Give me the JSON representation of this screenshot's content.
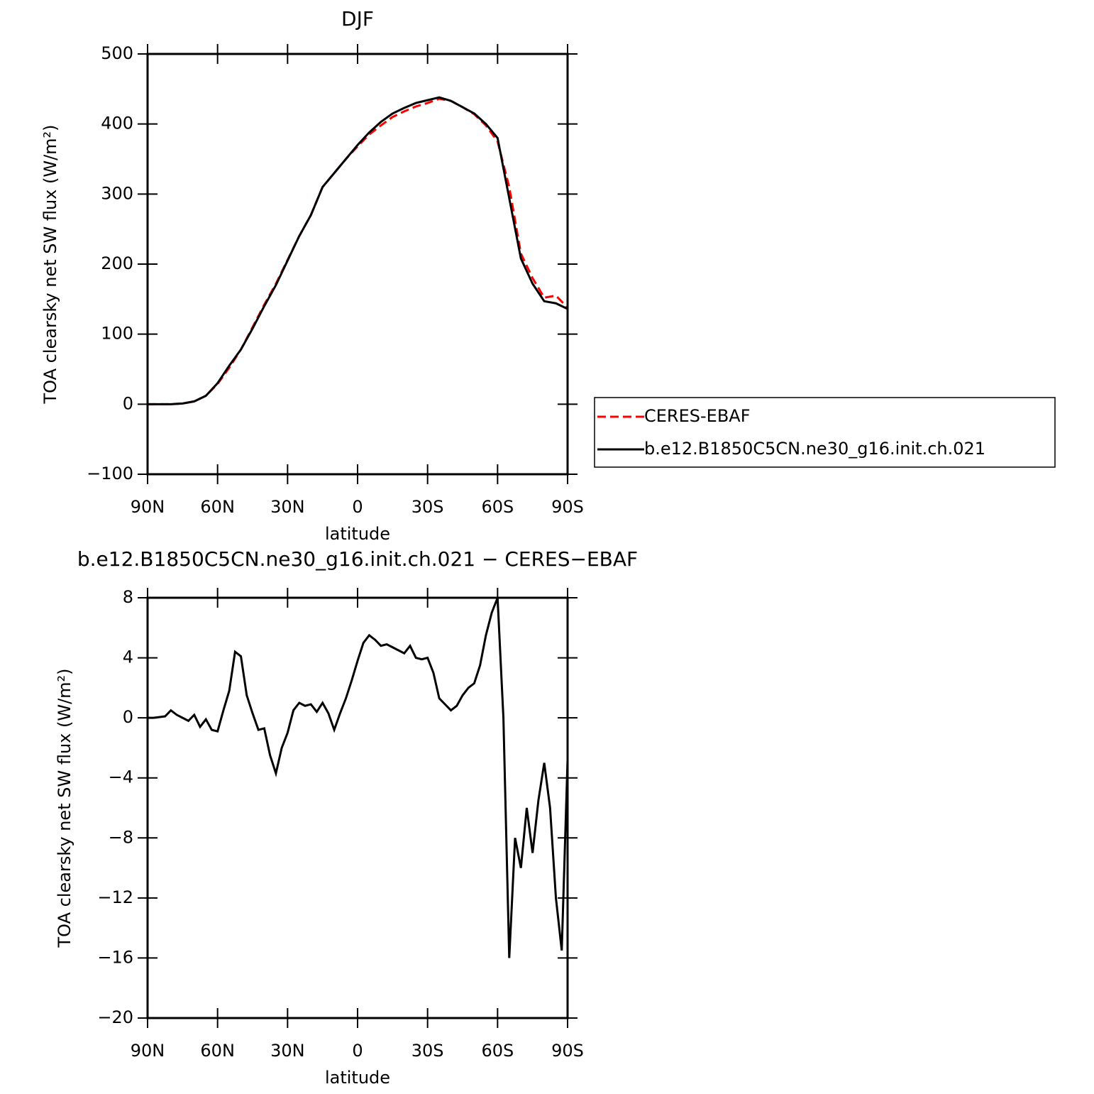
{
  "chart_data": [
    {
      "type": "line",
      "title": "DJF",
      "ylabel": "TOA clearsky net SW flux (W/m²)",
      "xlabel": "latitude",
      "x": [
        90,
        85,
        80,
        75,
        70,
        65,
        60,
        55,
        50,
        45,
        40,
        35,
        30,
        25,
        20,
        15,
        10,
        5,
        0,
        -5,
        -10,
        -15,
        -20,
        -25,
        -30,
        -35,
        -40,
        -45,
        -50,
        -55,
        -60,
        -65,
        -70,
        -75,
        -80,
        -85,
        -90
      ],
      "series": [
        {
          "name": "CERES-EBAF",
          "color": "#ff0000",
          "dashed": true,
          "values": [
            0,
            0,
            0,
            1,
            4,
            12,
            29,
            52,
            78,
            110,
            142,
            172,
            206,
            240,
            270,
            310,
            330,
            350,
            368,
            385,
            398,
            410,
            418,
            425,
            430,
            436,
            433,
            424,
            414,
            398,
            375,
            310,
            215,
            180,
            152,
            155,
            138
          ]
        },
        {
          "name": "b.e12.B1850C5CN.ne30_g16.init.ch.021",
          "color": "#000000",
          "dashed": false,
          "values": [
            0,
            0,
            0,
            1,
            4,
            12,
            30,
            55,
            78,
            108,
            140,
            170,
            205,
            240,
            270,
            310,
            330,
            350,
            370,
            388,
            403,
            415,
            423,
            430,
            434,
            438,
            433,
            424,
            415,
            400,
            380,
            294,
            208,
            172,
            147,
            144,
            136
          ]
        }
      ],
      "xlim": [
        90,
        -90
      ],
      "xticks": [
        {
          "value": 90,
          "label": "90N"
        },
        {
          "value": 60,
          "label": "60N"
        },
        {
          "value": 30,
          "label": "30N"
        },
        0,
        {
          "value": -30,
          "label": "30S"
        },
        {
          "value": -60,
          "label": "60S"
        },
        {
          "value": -90,
          "label": "90S"
        }
      ],
      "ylim": [
        -100,
        500
      ],
      "yticks": [
        {
          "value": -100,
          "label": "−100"
        },
        0,
        100,
        200,
        300,
        400,
        500
      ],
      "legend": "outside-right"
    },
    {
      "type": "line",
      "title": "b.e12.B1850C5CN.ne30_g16.init.ch.021 − CERES−EBAF",
      "ylabel": "TOA clearsky net SW flux (W/m²)",
      "xlabel": "latitude",
      "x": [
        90,
        87.5,
        85,
        82.5,
        80,
        77.5,
        75,
        72.5,
        70,
        67.5,
        65,
        62.5,
        60,
        57.5,
        55,
        52.5,
        50,
        47.5,
        45,
        42.5,
        40,
        37.5,
        35,
        32.5,
        30,
        27.5,
        25,
        22.5,
        20,
        17.5,
        15,
        12.5,
        10,
        7.5,
        5,
        2.5,
        0,
        -2.5,
        -5,
        -7.5,
        -10,
        -12.5,
        -15,
        -17.5,
        -20,
        -22.5,
        -25,
        -27.5,
        -30,
        -32.5,
        -35,
        -37.5,
        -40,
        -42.5,
        -45,
        -47.5,
        -50,
        -52.5,
        -55,
        -57.5,
        -60,
        -62.5,
        -65,
        -67.5,
        -70,
        -72.5,
        -75,
        -77.5,
        -80,
        -82.5,
        -85,
        -87.5,
        -90
      ],
      "values": [
        0,
        0,
        0.05,
        0.1,
        0.5,
        0.2,
        0,
        -0.2,
        0.2,
        -0.6,
        -0.1,
        -0.8,
        -0.9,
        0.5,
        1.8,
        4.4,
        4.1,
        1.5,
        0.3,
        -0.8,
        -0.7,
        -2.5,
        -3.7,
        -2,
        -1,
        0.5,
        1,
        0.8,
        0.9,
        0.4,
        1,
        0.3,
        -0.8,
        0.3,
        1.3,
        2.5,
        3.8,
        5,
        5.5,
        5.2,
        4.8,
        4.9,
        4.7,
        4.5,
        4.3,
        4.8,
        4,
        3.9,
        4,
        3,
        1.3,
        0.9,
        0.5,
        0.8,
        1.5,
        2,
        2.3,
        3.5,
        5.5,
        7,
        8,
        0,
        -16,
        -8,
        -10,
        -6,
        -9,
        -5.5,
        -3,
        -6,
        -12,
        -15.5,
        -2.8
      ],
      "color": "#000000",
      "xlim": [
        90,
        -90
      ],
      "xticks": [
        {
          "value": 90,
          "label": "90N"
        },
        {
          "value": 60,
          "label": "60N"
        },
        {
          "value": 30,
          "label": "30N"
        },
        0,
        {
          "value": -30,
          "label": "30S"
        },
        {
          "value": -60,
          "label": "60S"
        },
        {
          "value": -90,
          "label": "90S"
        }
      ],
      "ylim": [
        -20,
        8
      ],
      "yticks": [
        {
          "value": -20,
          "label": "−20"
        },
        {
          "value": -16,
          "label": "−16"
        },
        {
          "value": -12,
          "label": "−12"
        },
        {
          "value": -8,
          "label": "−8"
        },
        {
          "value": -4,
          "label": "−4"
        },
        0,
        4,
        8
      ]
    }
  ]
}
